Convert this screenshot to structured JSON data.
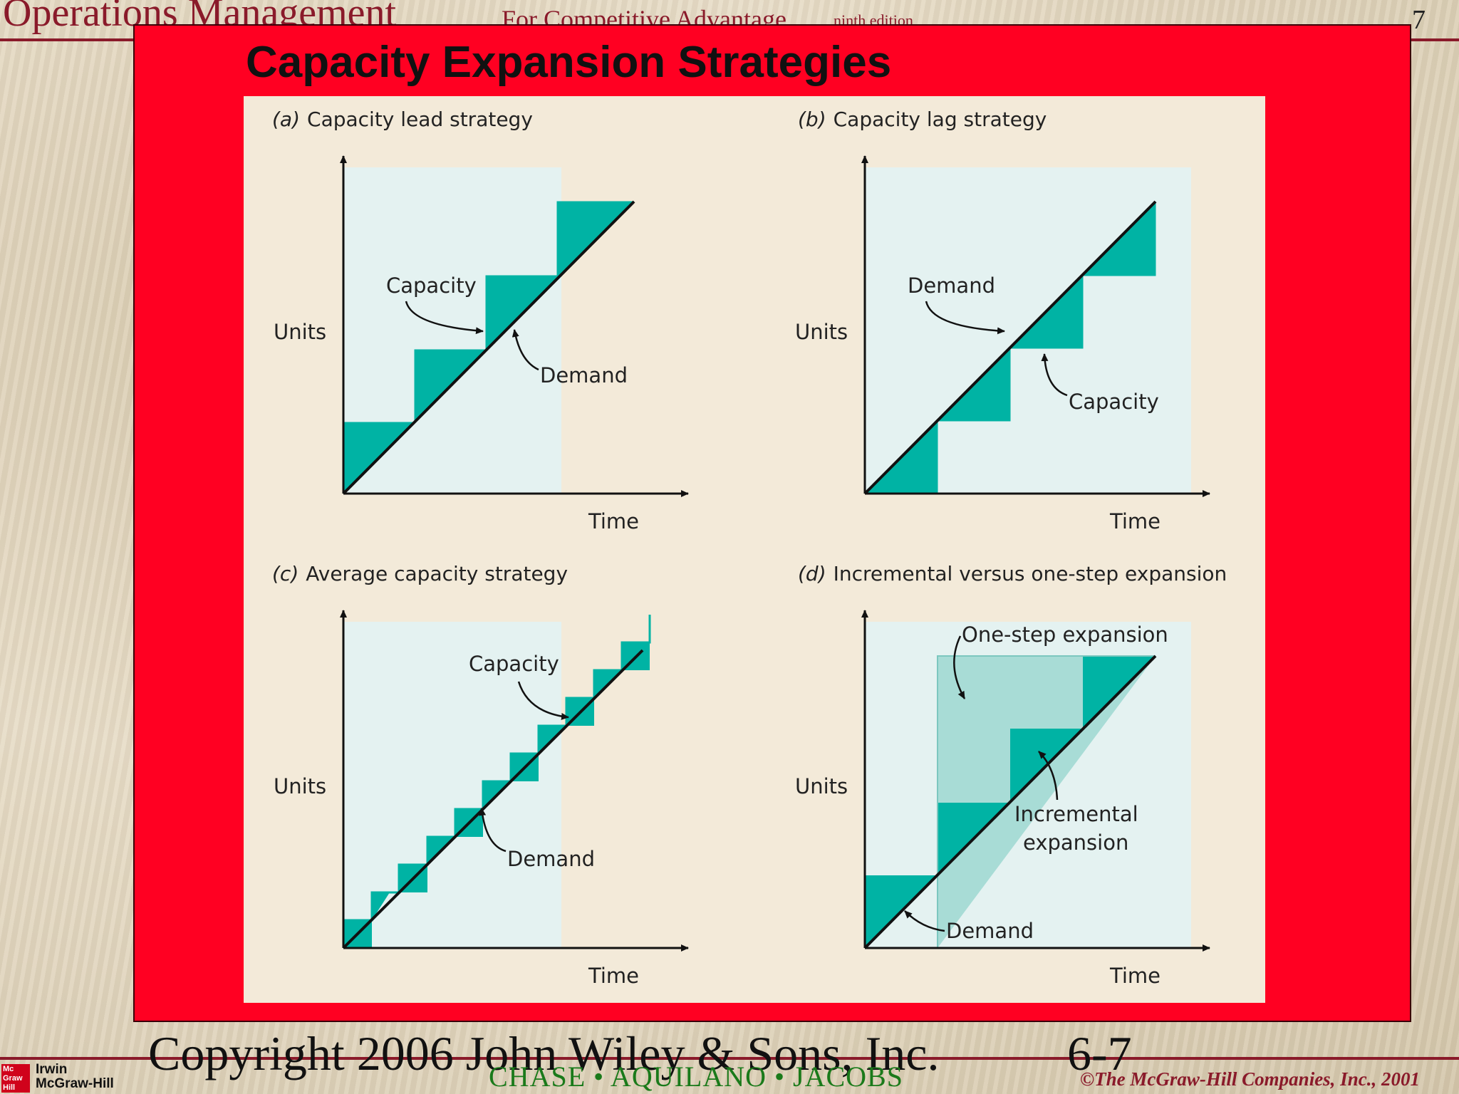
{
  "header": {
    "course_title": "Operations Management",
    "course_subtitle": "For Competitive Advantage",
    "edition": "ninth edition",
    "page_number": "7"
  },
  "slide": {
    "title": "Capacity Expansion Strategies"
  },
  "figure": {
    "panels": [
      {
        "heading_letter": "(a)",
        "heading_text": "Capacity lead strategy",
        "ylabel": "Units",
        "xlabel": "Time",
        "labels": [
          "Capacity",
          "Demand"
        ]
      },
      {
        "heading_letter": "(b)",
        "heading_text": "Capacity lag strategy",
        "ylabel": "Units",
        "xlabel": "Time",
        "labels": [
          "Demand",
          "Capacity"
        ]
      },
      {
        "heading_letter": "(c)",
        "heading_text": "Average capacity strategy",
        "ylabel": "Units",
        "xlabel": "Time",
        "labels": [
          "Capacity",
          "Demand"
        ]
      },
      {
        "heading_letter": "(d)",
        "heading_text": "Incremental versus one-step expansion",
        "ylabel": "Units",
        "xlabel": "Time",
        "labels": [
          "One-step expansion",
          "Incremental",
          "expansion",
          "Demand"
        ]
      }
    ]
  },
  "footer": {
    "copyright": "Copyright 2006 John Wiley & Sons, Inc.",
    "slide_number": "6-7",
    "authors": "CHASE • AQUILANO • JACOBS",
    "publisher": "©The McGraw-Hill Companies, Inc., 2001",
    "logo_line1": "Irwin",
    "logo_line2": "McGraw-Hill",
    "logo_mark": "Mc Graw Hill"
  },
  "colors": {
    "slide_bg": "#ff0022",
    "teal": "#00b3a4",
    "light_teal": "#a8dcd6",
    "plot_bg": "#e4f2f1",
    "figure_bg": "#f3ead9",
    "header_text": "#8a1a2a",
    "authors_text": "#1a7a1a"
  }
}
